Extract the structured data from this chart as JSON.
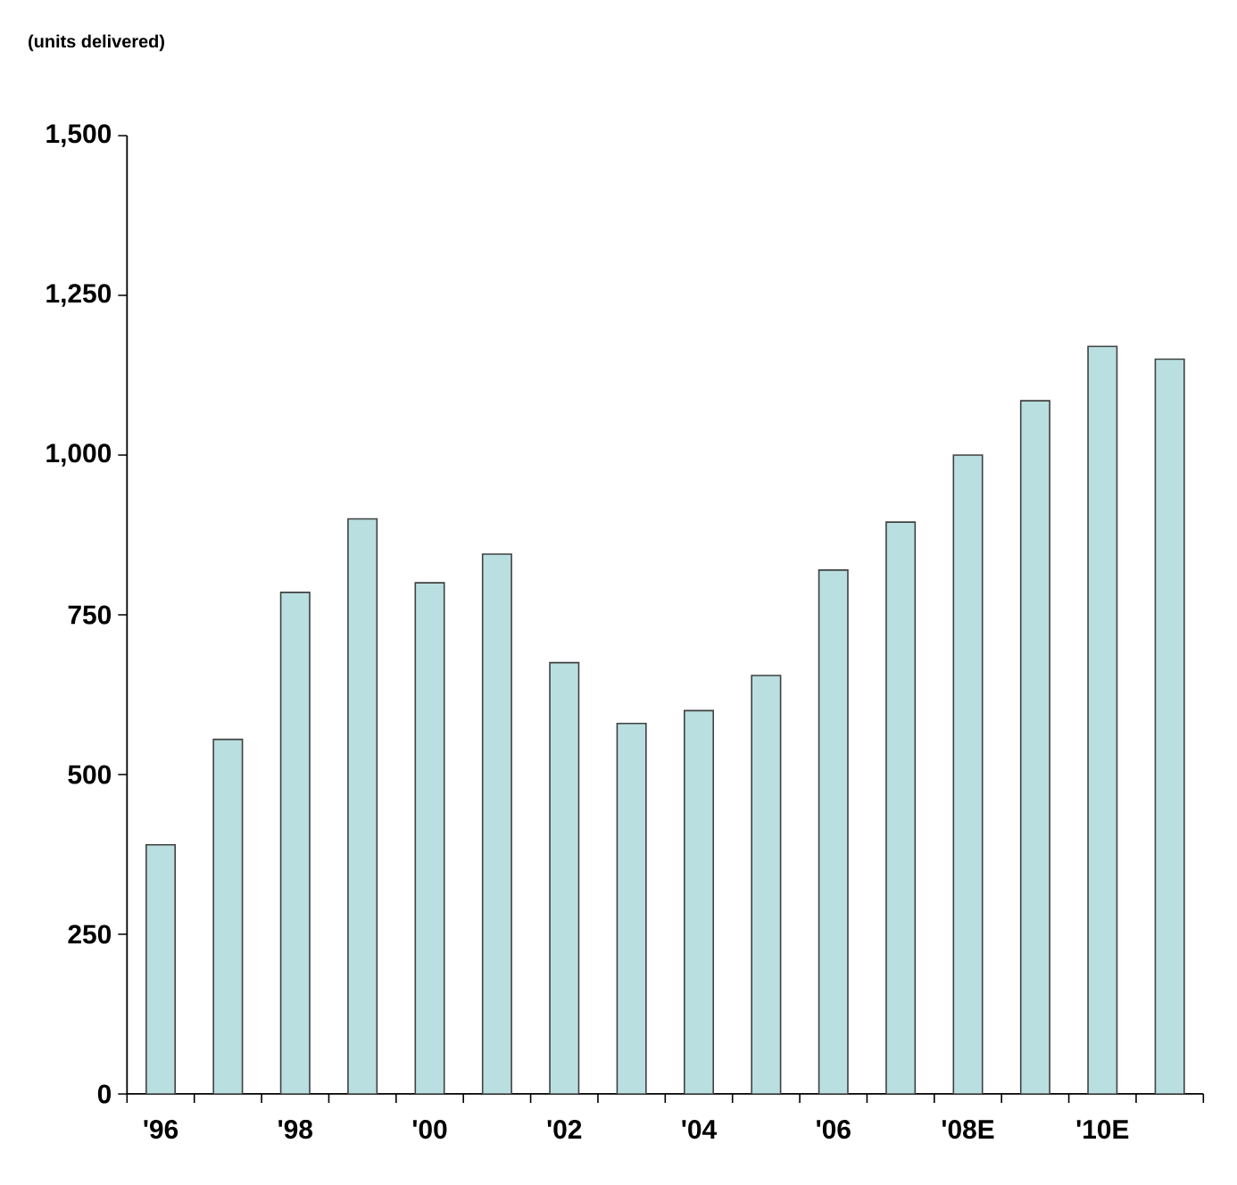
{
  "chart_data": {
    "type": "bar",
    "ylabel": "(units delivered)",
    "categories": [
      "'96",
      null,
      "'98",
      null,
      "'00",
      null,
      "'02",
      null,
      "'04",
      null,
      "'06",
      null,
      "'08E",
      null,
      "'10E",
      null
    ],
    "values": [
      390,
      555,
      785,
      900,
      800,
      845,
      675,
      580,
      600,
      655,
      820,
      895,
      1000,
      1085,
      1170,
      1150
    ],
    "color": "#b9dfe0",
    "ylim": [
      0,
      1500
    ],
    "yticks": [
      {
        "value": 0,
        "label": "0"
      },
      {
        "value": 250,
        "label": "250"
      },
      {
        "value": 500,
        "label": "500"
      },
      {
        "value": 750,
        "label": "750"
      },
      {
        "value": 1000,
        "label": "1,000"
      },
      {
        "value": 1250,
        "label": "1,250"
      },
      {
        "value": 1500,
        "label": "1,500"
      }
    ],
    "grid": false
  }
}
